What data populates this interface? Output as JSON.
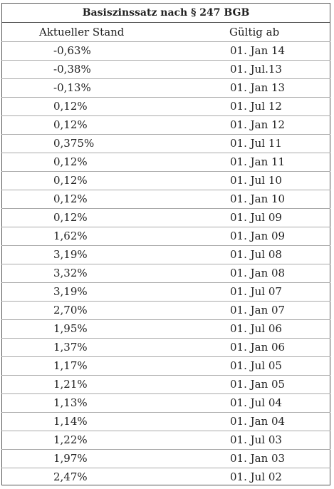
{
  "table": {
    "title": "Basiszinssatz nach § 247 BGB",
    "header": [
      "Aktueller Stand",
      "Gültig ab"
    ],
    "rows": [
      [
        "-0,63%",
        "01. Jan 14"
      ],
      [
        "-0,38%",
        "01. Jul.13"
      ],
      [
        "-0,13%",
        "01. Jan 13"
      ],
      [
        "0,12%",
        "01. Jul 12"
      ],
      [
        "0,12%",
        "01. Jan 12"
      ],
      [
        "0,375%",
        "01. Jul 11"
      ],
      [
        "0,12%",
        "01. Jan 11"
      ],
      [
        "0,12%",
        "01. Jul 10"
      ],
      [
        "0,12%",
        "01. Jan 10"
      ],
      [
        "0,12%",
        "01. Jul 09"
      ],
      [
        "1,62%",
        "01. Jan 09"
      ],
      [
        "3,19%",
        "01. Jul 08"
      ],
      [
        "3,32%",
        "01. Jan 08"
      ],
      [
        "3,19%",
        "01. Jul 07"
      ],
      [
        "2,70%",
        "01. Jan 07"
      ],
      [
        "1,95%",
        "01. Jul 06"
      ],
      [
        "1,37%",
        "01. Jan 06"
      ],
      [
        "1,17%",
        "01. Jul 05"
      ],
      [
        "1,21%",
        "01. Jan 05"
      ],
      [
        "1,13%",
        "01. Jul 04"
      ],
      [
        "1,14%",
        "01. Jan 04"
      ],
      [
        "1,22%",
        "01. Jul 03"
      ],
      [
        "1,97%",
        "01. Jan 03"
      ],
      [
        "2,47%",
        "01. Jul 02"
      ]
    ]
  }
}
